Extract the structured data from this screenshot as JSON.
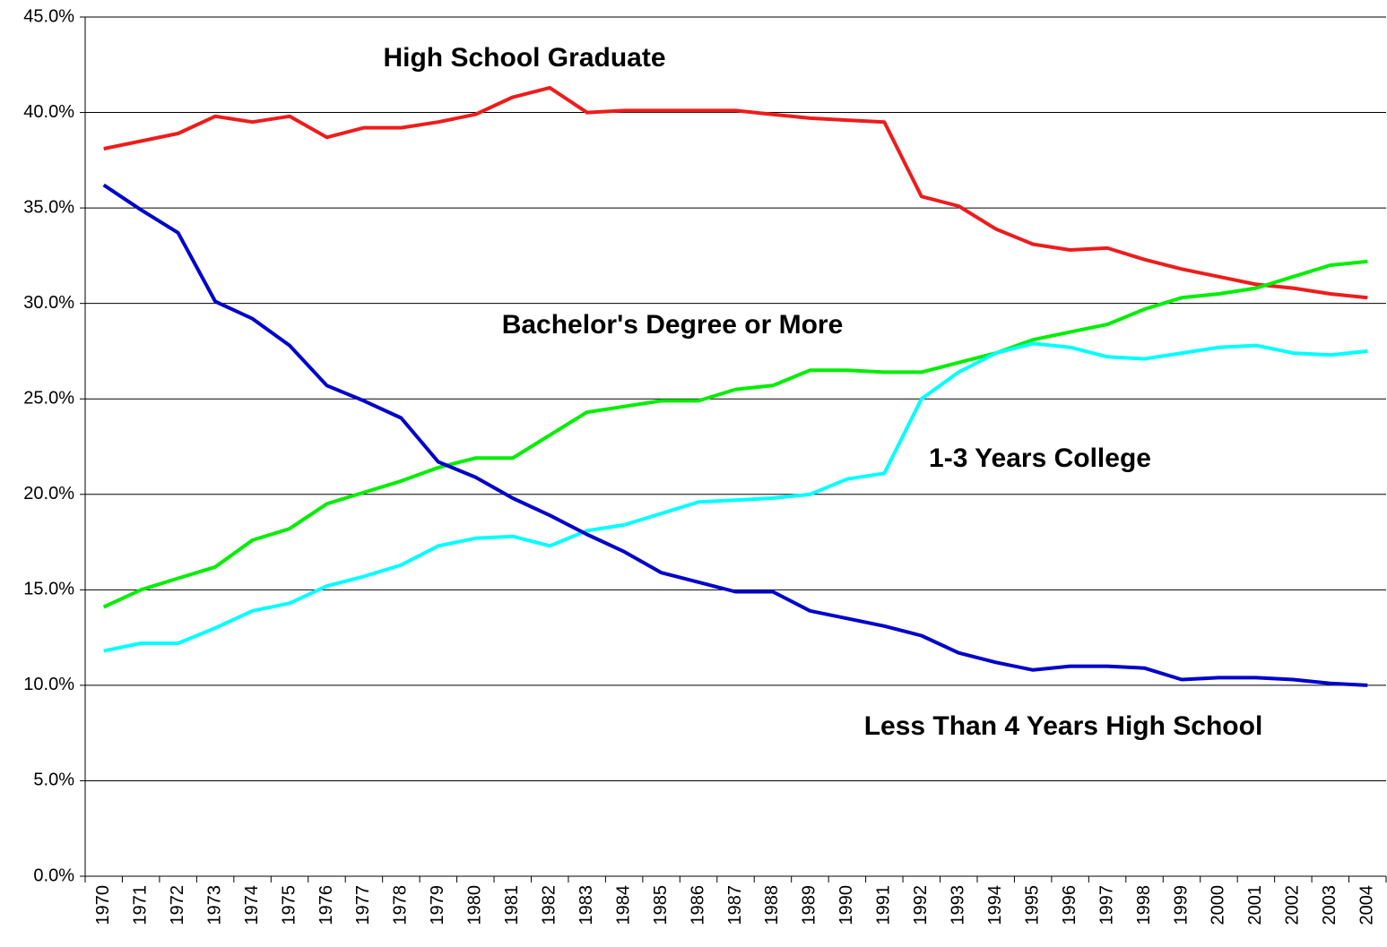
{
  "chart_data": {
    "type": "line",
    "categories": [
      "1970",
      "1971",
      "1972",
      "1973",
      "1974",
      "1975",
      "1976",
      "1977",
      "1978",
      "1979",
      "1980",
      "1981",
      "1982",
      "1983",
      "1984",
      "1985",
      "1986",
      "1987",
      "1988",
      "1989",
      "1990",
      "1991",
      "1992",
      "1993",
      "1994",
      "1995",
      "1996",
      "1997",
      "1998",
      "1999",
      "2000",
      "2001",
      "2002",
      "2003",
      "2004"
    ],
    "series": [
      {
        "name": "High School Graduate",
        "color": "#ee1c1c",
        "values": [
          38.1,
          38.5,
          38.9,
          39.8,
          39.5,
          39.8,
          38.7,
          39.2,
          39.2,
          39.5,
          39.9,
          40.8,
          41.3,
          40.0,
          40.1,
          40.1,
          40.1,
          40.1,
          39.9,
          39.7,
          39.6,
          39.5,
          35.6,
          35.1,
          33.9,
          33.1,
          32.8,
          32.9,
          32.3,
          31.8,
          31.4,
          31.0,
          30.8,
          30.5,
          30.3
        ]
      },
      {
        "name": "Bachelor's Degree or More",
        "color": "#00ee00",
        "values": [
          14.1,
          15.0,
          15.6,
          16.2,
          17.6,
          18.2,
          19.5,
          20.1,
          20.7,
          21.4,
          21.9,
          21.9,
          23.1,
          24.3,
          24.6,
          24.9,
          24.9,
          25.5,
          25.7,
          26.5,
          26.5,
          26.4,
          26.4,
          26.9,
          27.4,
          28.1,
          28.5,
          28.9,
          29.7,
          30.3,
          30.5,
          30.8,
          31.4,
          32.0,
          32.2
        ]
      },
      {
        "name": "1-3 Years College",
        "color": "#00ffff",
        "values": [
          11.8,
          12.2,
          12.2,
          13.0,
          13.9,
          14.3,
          15.2,
          15.7,
          16.3,
          17.3,
          17.7,
          17.8,
          17.3,
          18.1,
          18.4,
          19.0,
          19.6,
          19.7,
          19.8,
          20.0,
          20.8,
          21.1,
          25.0,
          26.4,
          27.4,
          27.9,
          27.7,
          27.2,
          27.1,
          27.4,
          27.7,
          27.8,
          27.4,
          27.3,
          27.5
        ]
      },
      {
        "name": "Less Than 4 Years High School",
        "color": "#0000cc",
        "values": [
          36.2,
          34.9,
          33.7,
          30.1,
          29.2,
          27.8,
          25.7,
          24.9,
          24.0,
          21.7,
          20.9,
          19.8,
          18.9,
          17.9,
          17.0,
          15.9,
          15.4,
          14.9,
          14.9,
          13.9,
          13.5,
          13.1,
          12.6,
          11.7,
          11.2,
          10.8,
          11.0,
          11.0,
          10.9,
          10.3,
          10.4,
          10.4,
          10.3,
          10.1,
          10.0
        ]
      }
    ],
    "ylim": [
      0,
      45
    ],
    "yticks": [
      {
        "value": 0,
        "label": "0.0%"
      },
      {
        "value": 5,
        "label": "5.0%"
      },
      {
        "value": 10,
        "label": "10.0%"
      },
      {
        "value": 15,
        "label": "15.0%"
      },
      {
        "value": 20,
        "label": "20.0%"
      },
      {
        "value": 25,
        "label": "25.0%"
      },
      {
        "value": 30,
        "label": "30.0%"
      },
      {
        "value": 35,
        "label": "35.0%"
      },
      {
        "value": 40,
        "label": "40.0%"
      },
      {
        "value": 45,
        "label": "45.0%"
      }
    ],
    "grid": true
  }
}
